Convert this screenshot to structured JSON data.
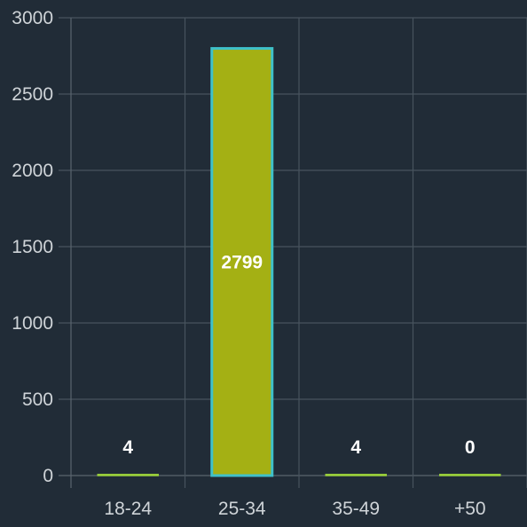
{
  "chart_data": {
    "type": "bar",
    "title": "",
    "xlabel": "",
    "ylabel": "",
    "categories": [
      "18-24",
      "25-34",
      "35-49",
      "+50"
    ],
    "values": [
      4,
      2799,
      4,
      0
    ],
    "data_labels": [
      "4",
      "2799",
      "4",
      "0"
    ],
    "ylim": [
      0,
      3000
    ],
    "yticks": [
      0,
      500,
      1000,
      1500,
      2000,
      2500,
      3000
    ],
    "ytick_labels": [
      "0",
      "500",
      "1000",
      "1500",
      "2000",
      "2500",
      "3000"
    ],
    "grid": true,
    "legend": "none",
    "colors": {
      "background": "#212c37",
      "bar_fill": "#a4b014",
      "bar_highlight_border": "#3fc1c9",
      "bar_border": "#9bd13b",
      "grid": "#48535e",
      "tick_text": "#cfd4d8",
      "label_text": "#ffffff"
    }
  }
}
